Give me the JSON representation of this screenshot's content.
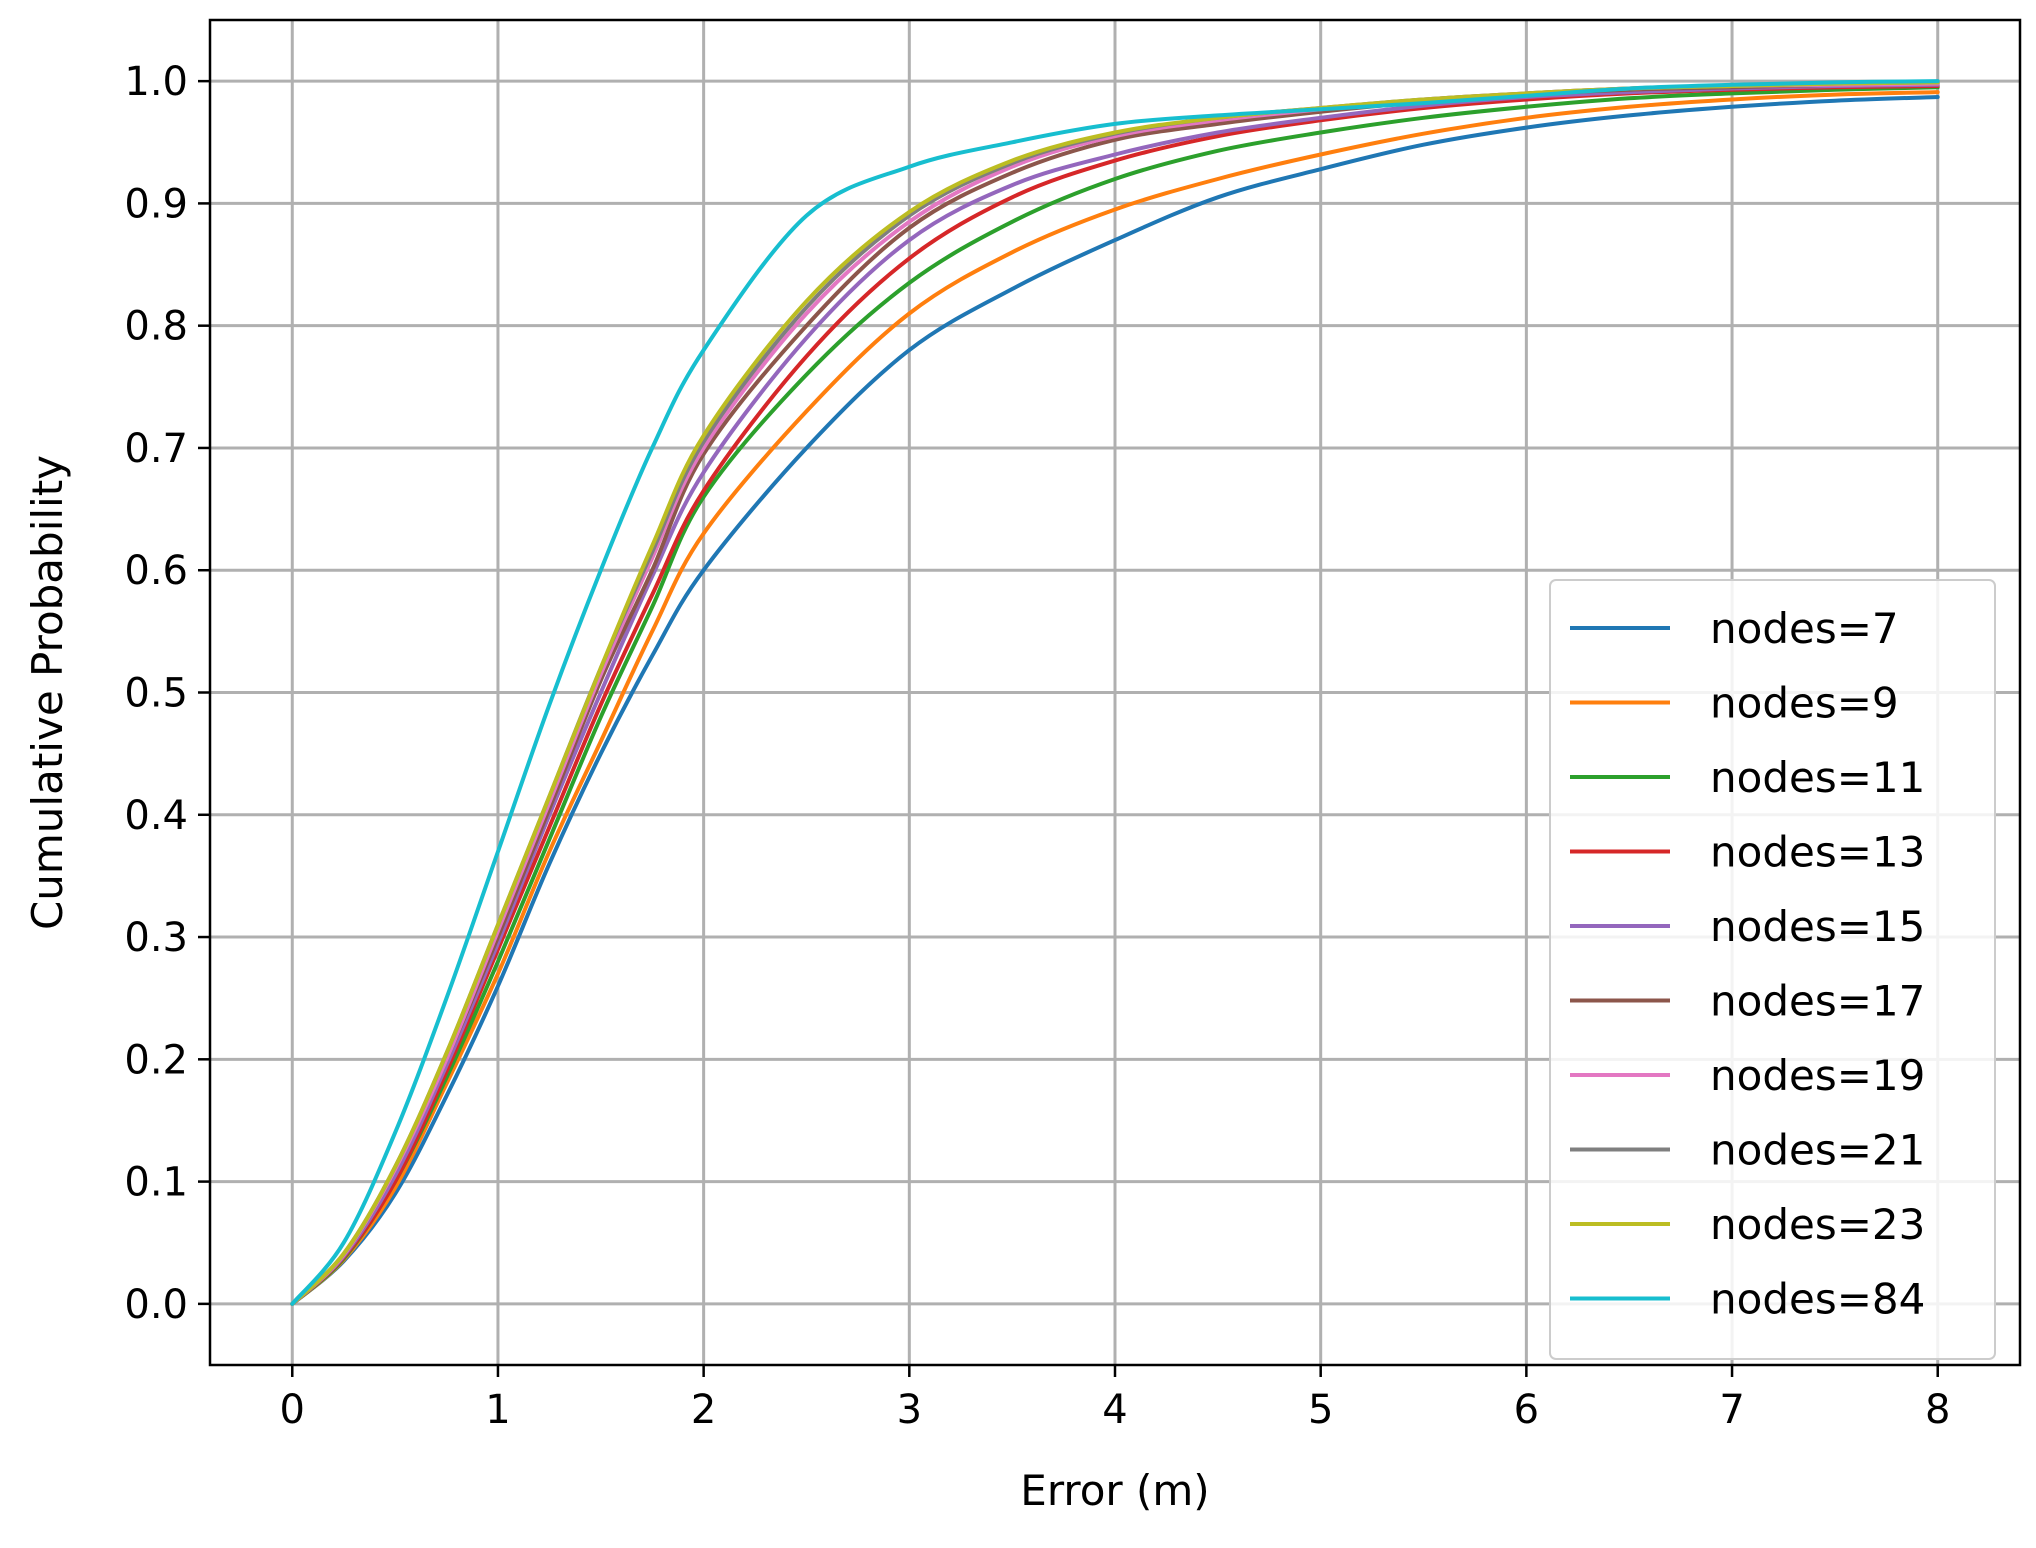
{
  "chart_data": {
    "type": "line",
    "title": "",
    "xlabel": "Error (m)",
    "ylabel": "Cumulative Probability",
    "xlim": [
      -0.4,
      8.4
    ],
    "ylim": [
      -0.05,
      1.05
    ],
    "xticks": [
      0,
      1,
      2,
      3,
      4,
      5,
      6,
      7,
      8
    ],
    "xtick_labels": [
      "0",
      "1",
      "2",
      "3",
      "4",
      "5",
      "6",
      "7",
      "8"
    ],
    "yticks": [
      0.0,
      0.1,
      0.2,
      0.3,
      0.4,
      0.5,
      0.6,
      0.7,
      0.8,
      0.9,
      1.0
    ],
    "ytick_labels": [
      "0.0",
      "0.1",
      "0.2",
      "0.3",
      "0.4",
      "0.5",
      "0.6",
      "0.7",
      "0.8",
      "0.9",
      "1.0"
    ],
    "grid": true,
    "legend_position": "lower-right",
    "x": [
      0,
      0.25,
      0.5,
      0.75,
      1,
      1.25,
      1.5,
      1.75,
      2,
      2.5,
      3,
      3.5,
      4,
      4.5,
      5,
      5.5,
      6,
      6.5,
      7,
      7.5,
      8
    ],
    "series": [
      {
        "name": "nodes=7",
        "color": "#1f77b4",
        "values": [
          0,
          0.035,
          0.09,
          0.17,
          0.26,
          0.36,
          0.45,
          0.53,
          0.6,
          0.7,
          0.78,
          0.83,
          0.87,
          0.905,
          0.928,
          0.948,
          0.962,
          0.972,
          0.979,
          0.984,
          0.987
        ]
      },
      {
        "name": "nodes=9",
        "color": "#ff7f0e",
        "values": [
          0,
          0.036,
          0.095,
          0.18,
          0.27,
          0.37,
          0.46,
          0.55,
          0.63,
          0.73,
          0.81,
          0.86,
          0.895,
          0.92,
          0.94,
          0.957,
          0.97,
          0.979,
          0.985,
          0.989,
          0.991
        ]
      },
      {
        "name": "nodes=11",
        "color": "#2ca02c",
        "values": [
          0,
          0.037,
          0.1,
          0.185,
          0.28,
          0.38,
          0.48,
          0.57,
          0.66,
          0.76,
          0.835,
          0.885,
          0.92,
          0.943,
          0.958,
          0.97,
          0.979,
          0.986,
          0.99,
          0.993,
          0.995
        ]
      },
      {
        "name": "nodes=13",
        "color": "#d62728",
        "values": [
          0,
          0.038,
          0.1,
          0.19,
          0.29,
          0.39,
          0.49,
          0.58,
          0.665,
          0.775,
          0.855,
          0.905,
          0.935,
          0.955,
          0.968,
          0.978,
          0.985,
          0.99,
          0.993,
          0.995,
          0.996
        ]
      },
      {
        "name": "nodes=15",
        "color": "#9467bd",
        "values": [
          0,
          0.039,
          0.105,
          0.195,
          0.295,
          0.4,
          0.5,
          0.595,
          0.68,
          0.79,
          0.87,
          0.915,
          0.94,
          0.958,
          0.97,
          0.98,
          0.987,
          0.991,
          0.994,
          0.996,
          0.997
        ]
      },
      {
        "name": "nodes=17",
        "color": "#8c564b",
        "values": [
          0,
          0.04,
          0.11,
          0.2,
          0.3,
          0.405,
          0.51,
          0.6,
          0.695,
          0.8,
          0.88,
          0.925,
          0.952,
          0.965,
          0.975,
          0.983,
          0.989,
          0.993,
          0.995,
          0.997,
          0.998
        ]
      },
      {
        "name": "nodes=19",
        "color": "#e377c2",
        "values": [
          0,
          0.04,
          0.11,
          0.2,
          0.305,
          0.41,
          0.515,
          0.61,
          0.7,
          0.81,
          0.885,
          0.93,
          0.955,
          0.968,
          0.977,
          0.985,
          0.99,
          0.994,
          0.996,
          0.997,
          0.998
        ]
      },
      {
        "name": "nodes=21",
        "color": "#7f7f7f",
        "values": [
          0,
          0.041,
          0.112,
          0.205,
          0.31,
          0.415,
          0.52,
          0.615,
          0.705,
          0.815,
          0.89,
          0.933,
          0.957,
          0.97,
          0.978,
          0.985,
          0.99,
          0.994,
          0.996,
          0.998,
          0.999
        ]
      },
      {
        "name": "nodes=23",
        "color": "#bcbd22",
        "values": [
          0,
          0.041,
          0.112,
          0.205,
          0.31,
          0.415,
          0.52,
          0.62,
          0.71,
          0.82,
          0.893,
          0.935,
          0.958,
          0.97,
          0.978,
          0.985,
          0.99,
          0.994,
          0.996,
          0.998,
          0.999
        ]
      },
      {
        "name": "nodes=84",
        "color": "#17becf",
        "values": [
          0,
          0.05,
          0.14,
          0.25,
          0.37,
          0.49,
          0.6,
          0.7,
          0.78,
          0.89,
          0.93,
          0.95,
          0.965,
          0.972,
          0.977,
          0.982,
          0.988,
          0.994,
          0.997,
          0.999,
          1.0
        ]
      }
    ]
  }
}
